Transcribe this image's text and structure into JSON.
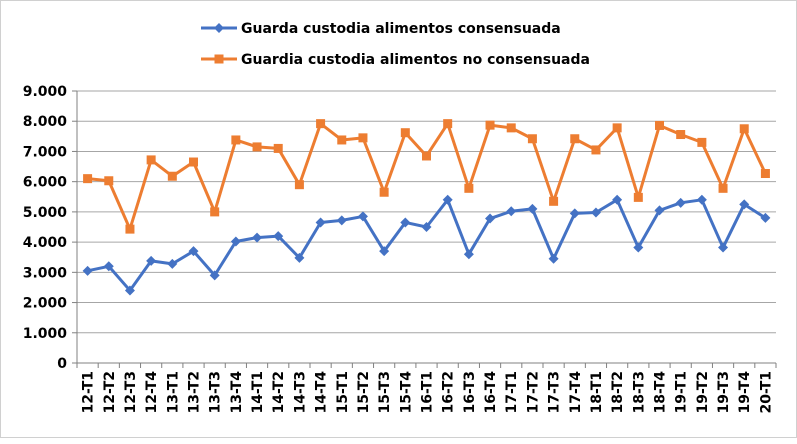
{
  "chart_data": {
    "type": "line",
    "title": "",
    "xlabel": "",
    "ylabel": "",
    "ylim": [
      0,
      9000
    ],
    "yticks": [
      0,
      1000,
      2000,
      3000,
      4000,
      5000,
      6000,
      7000,
      8000,
      9000
    ],
    "ytick_labels": [
      "0",
      "1.000",
      "2.000",
      "3.000",
      "4.000",
      "5.000",
      "6.000",
      "7.000",
      "8.000",
      "9.000"
    ],
    "grid": "horizontal",
    "legend_position": "top",
    "categories": [
      "12-T1",
      "12-T2",
      "12-T3",
      "12-T4",
      "13-T1",
      "13-T2",
      "13-T3",
      "13-T4",
      "14-T1",
      "14-T2",
      "14-T3",
      "14-T4",
      "15-T1",
      "15-T2",
      "15-T3",
      "15-T4",
      "16-T1",
      "16-T2",
      "16-T3",
      "16-T4",
      "17-T1",
      "17-T2",
      "17-T3",
      "17-T4",
      "18-T1",
      "18-T2",
      "18-T3",
      "18-T4",
      "19-T1",
      "19-T2",
      "19-T3",
      "19-T4",
      "20-T1"
    ],
    "series": [
      {
        "name": "Guarda custodia alimentos consensuada",
        "color": "#4472C4",
        "marker": "diamond",
        "values": [
          3050,
          3200,
          2400,
          3380,
          3280,
          3700,
          2900,
          4020,
          4150,
          4200,
          3480,
          4650,
          4720,
          4850,
          3700,
          4650,
          4500,
          5400,
          3600,
          4780,
          5020,
          5100,
          3450,
          4950,
          4980,
          5400,
          3820,
          5050,
          5300,
          5400,
          3820,
          5250,
          4800
        ]
      },
      {
        "name": "Guardia custodia alimentos no consensuada",
        "color": "#ED7D31",
        "marker": "square",
        "values": [
          6100,
          6030,
          4430,
          6720,
          6180,
          6650,
          5000,
          7380,
          7150,
          7100,
          5900,
          7920,
          7380,
          7450,
          5650,
          7620,
          6850,
          7920,
          5780,
          7870,
          7780,
          7420,
          5350,
          7420,
          7050,
          7780,
          5480,
          7860,
          7560,
          7300,
          5780,
          7750,
          6270
        ]
      }
    ]
  }
}
